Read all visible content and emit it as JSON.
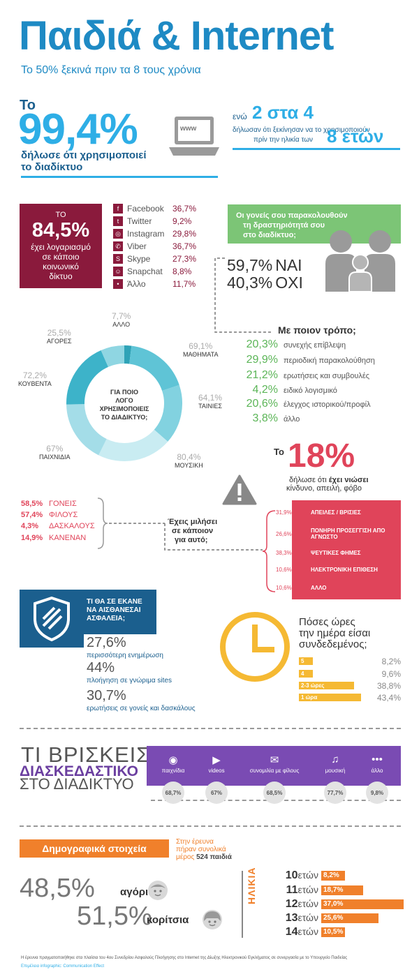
{
  "header": {
    "title": "Παιδιά & Internet",
    "subtitle": "Το 50% ξεκινά πριν τα 8 τους χρόνια"
  },
  "usage": {
    "to": "Το",
    "percent": "99,4%",
    "text_line1": "δήλωσε ότι χρησιμοποιεί",
    "text_line2": "το διαδίκτυο",
    "www": "www",
    "while": "ενώ",
    "ratio": "2 στα 4",
    "ratio_text1": "δήλωσαν ότι ξεκίνησαν να το χρησιμοποιούν",
    "ratio_text2": "πρίν την ηλικία των",
    "age": "8 ετών"
  },
  "social": {
    "to": "ΤΟ",
    "percent": "84,5%",
    "text": [
      "έχει λογαριασμό",
      "σε κάποιο",
      "κοινωνικό",
      "δίκτυο"
    ],
    "networks": [
      {
        "name": "Facebook",
        "pct": "36,7%",
        "icon": "f"
      },
      {
        "name": "Twitter",
        "pct": "9,2%",
        "icon": "t"
      },
      {
        "name": "Instagram",
        "pct": "29,8%",
        "icon": "◎"
      },
      {
        "name": "Viber",
        "pct": "36,7%",
        "icon": "✆"
      },
      {
        "name": "Skype",
        "pct": "27,3%",
        "icon": "S"
      },
      {
        "name": "Snapchat",
        "pct": "8,8%",
        "icon": "☺"
      },
      {
        "name": "Άλλο",
        "pct": "11,7%",
        "icon": "•"
      }
    ]
  },
  "parents": {
    "question": [
      "Οι γονείς σου παρακολουθούν",
      "τη δραστηριότητά σου",
      "στο διαδίκτυο;"
    ],
    "yes_pct": "59,7%",
    "yes": "ΝΑΙ",
    "no_pct": "40,3%",
    "no": "ΟΧΙ"
  },
  "ways": {
    "title": "Με ποιον τρόπο;",
    "items": [
      {
        "pct": "20,3%",
        "label": "συνεχής επίβλεψη"
      },
      {
        "pct": "29,9%",
        "label": "περιοδική παρακολούθηση"
      },
      {
        "pct": "21,2%",
        "label": "ερωτήσεις και συμβουλές"
      },
      {
        "pct": "4,2%",
        "label": "ειδικό λογισμικό"
      },
      {
        "pct": "20,6%",
        "label": "έλεγχος ιστορικού/προφίλ"
      },
      {
        "pct": "3,8%",
        "label": "άλλο"
      }
    ]
  },
  "purposes": {
    "center": [
      "ΓΙΑ ΠΟΙΟ",
      "ΛΟΓΟ",
      "ΧΡΗΣΙΜΟΠΟΙΕΙΣ",
      "ΤΟ ΔΙΑΔΙΚΤΥΟ;"
    ],
    "items": [
      {
        "pct": "7,7%",
        "label": "ΑΛΛΟ",
        "color": "#2fa3b7"
      },
      {
        "pct": "69,1%",
        "label": "ΜΑΘΗΜΑΤΑ",
        "color": "#5fc4d6"
      },
      {
        "pct": "64,1%",
        "label": "ΤΑΙΝΙΕΣ",
        "color": "#82d2e0"
      },
      {
        "pct": "80,4%",
        "label": "ΜΟΥΣΙΚΗ",
        "color": "#c9ecf2"
      },
      {
        "pct": "67%",
        "label": "ΠΑΙΧΝΙΔΙΑ",
        "color": "#a4dde8"
      },
      {
        "pct": "72,2%",
        "label": "ΚΟΥΒΕΝΤΑ",
        "color": "#3db3c9"
      },
      {
        "pct": "25,5%",
        "label": "ΑΓΟΡΕΣ",
        "color": "#8fd6e2"
      }
    ]
  },
  "threat": {
    "to": "Το",
    "percent": "18%",
    "text1_a": "δήλωσε ότι ",
    "text1_b": "έχει νιώσει",
    "text2": "κίνδυνο, απειλή, φόβο",
    "items": [
      {
        "pct": "31,9%",
        "label": "ΑΠΕΙΛΕΣ / ΒΡΙΣΙΕΣ"
      },
      {
        "pct": "26,6%",
        "label": "ΠΟΝΗΡΗ ΠΡΟΣΕΓΓΙΣΗ ΑΠΟ ΑΓΝΩΣΤΟ"
      },
      {
        "pct": "38,3%",
        "label": "ΨΕΥΤΙΚΕΣ ΦΗΜΕΣ"
      },
      {
        "pct": "10,6%",
        "label": "ΗΛΕΚΤΡΟΝΙΚΗ ΕΠΙΘΕΣΗ"
      },
      {
        "pct": "10,6%",
        "label": "ΑΛΛΟ"
      }
    ]
  },
  "talked": {
    "question": [
      "Έχεις μιλήσει",
      "σε κάποιον",
      "για αυτό;"
    ],
    "items": [
      {
        "pct": "58,5%",
        "label": "ΓΟΝΕΙΣ"
      },
      {
        "pct": "57,4%",
        "label": "ΦΙΛΟΥΣ"
      },
      {
        "pct": "4,3%",
        "label": "ΔΑΣΚΑΛΟΥΣ"
      },
      {
        "pct": "14,9%",
        "label": "ΚΑΝΕΝΑΝ"
      }
    ]
  },
  "safety": {
    "question": [
      "ΤΙ ΘΑ ΣΕ ΕΚΑΝΕ",
      "ΝΑ ΑΙΣΘΑΝΕΣΑΙ",
      "ΑΣΦΑΛΕΙΑ;"
    ],
    "items": [
      {
        "pct": "27,6%",
        "label": "περισσότερη ενημέρωση"
      },
      {
        "pct": "44%",
        "label": "πλοήγηση σε γνώριμα sites"
      },
      {
        "pct": "30,7%",
        "label": "ερωτήσεις σε γονείς και δασκάλους"
      }
    ]
  },
  "hours": {
    "question": [
      "Πόσες ώρες",
      "την ημέρα είσαι",
      "συνδεδεμένος;"
    ],
    "items": [
      {
        "label": "5 ώρες",
        "pct": "8,2%",
        "value": 8.2
      },
      {
        "label": "4 ώρες",
        "pct": "9,6%",
        "value": 9.6
      },
      {
        "label": "2-3 ώρες",
        "pct": "38,8%",
        "value": 38.8
      },
      {
        "label": "1 ώρα",
        "pct": "43,4%",
        "value": 43.4
      }
    ]
  },
  "fun": {
    "title1": "ΤΙ ΒΡΙΣΚΕΙΣ",
    "title2": "ΔΙΑΣΚΕΔΑΣΤΙΚΟ",
    "title3": "ΣΤΟ ΔΙΑΔΙΚΤΥΟ",
    "items": [
      {
        "label": "παιχνίδια",
        "pct": "68,7%",
        "icon": "gamepad-icon"
      },
      {
        "label": "videos",
        "pct": "67%",
        "icon": "play-icon"
      },
      {
        "label": "συνομιλία με φίλους",
        "pct": "68,5%",
        "icon": "chat-icon"
      },
      {
        "label": "μουσική",
        "pct": "77,7%",
        "icon": "music-icon"
      },
      {
        "label": "άλλο",
        "pct": "9,8%",
        "icon": "more-icon"
      }
    ]
  },
  "demo": {
    "title": "Δημογραφικά στοιχεία",
    "note1": "Στην έρευνα",
    "note2": "πήραν συνολικά",
    "note3_a": "μέρος ",
    "note3_b": "524 παιδιά",
    "boys_pct": "48,5%",
    "boys": "αγόρια",
    "girls_pct": "51,5%",
    "girls": "κορίτσια",
    "age_label": "ΗΛΙΚΙΑ",
    "ages": [
      {
        "num": "10",
        "unit": "ετών",
        "pct": "8,2%",
        "value": 8.2
      },
      {
        "num": "11",
        "unit": "ετών",
        "pct": "18,7%",
        "value": 18.7
      },
      {
        "num": "12",
        "unit": "ετών",
        "pct": "37,0%",
        "value": 37.0
      },
      {
        "num": "13",
        "unit": "ετών",
        "pct": "25,6%",
        "value": 25.6
      },
      {
        "num": "14",
        "unit": "ετών",
        "pct": "10,5%",
        "value": 10.5
      }
    ]
  },
  "footer": {
    "line1": "Η έρευνα πραγματοποιήθηκε στα πλαίσια του 4ου Συνεδρίου Ασφαλούς Πλοήγησης στο Internet της Δίωξης Ηλεκτρονικού Εγκλήματος σε συνεργασία με το Υπουργείο Παιδείας",
    "line2": "Επιμέλεια infographic: Communication Effect"
  }
}
